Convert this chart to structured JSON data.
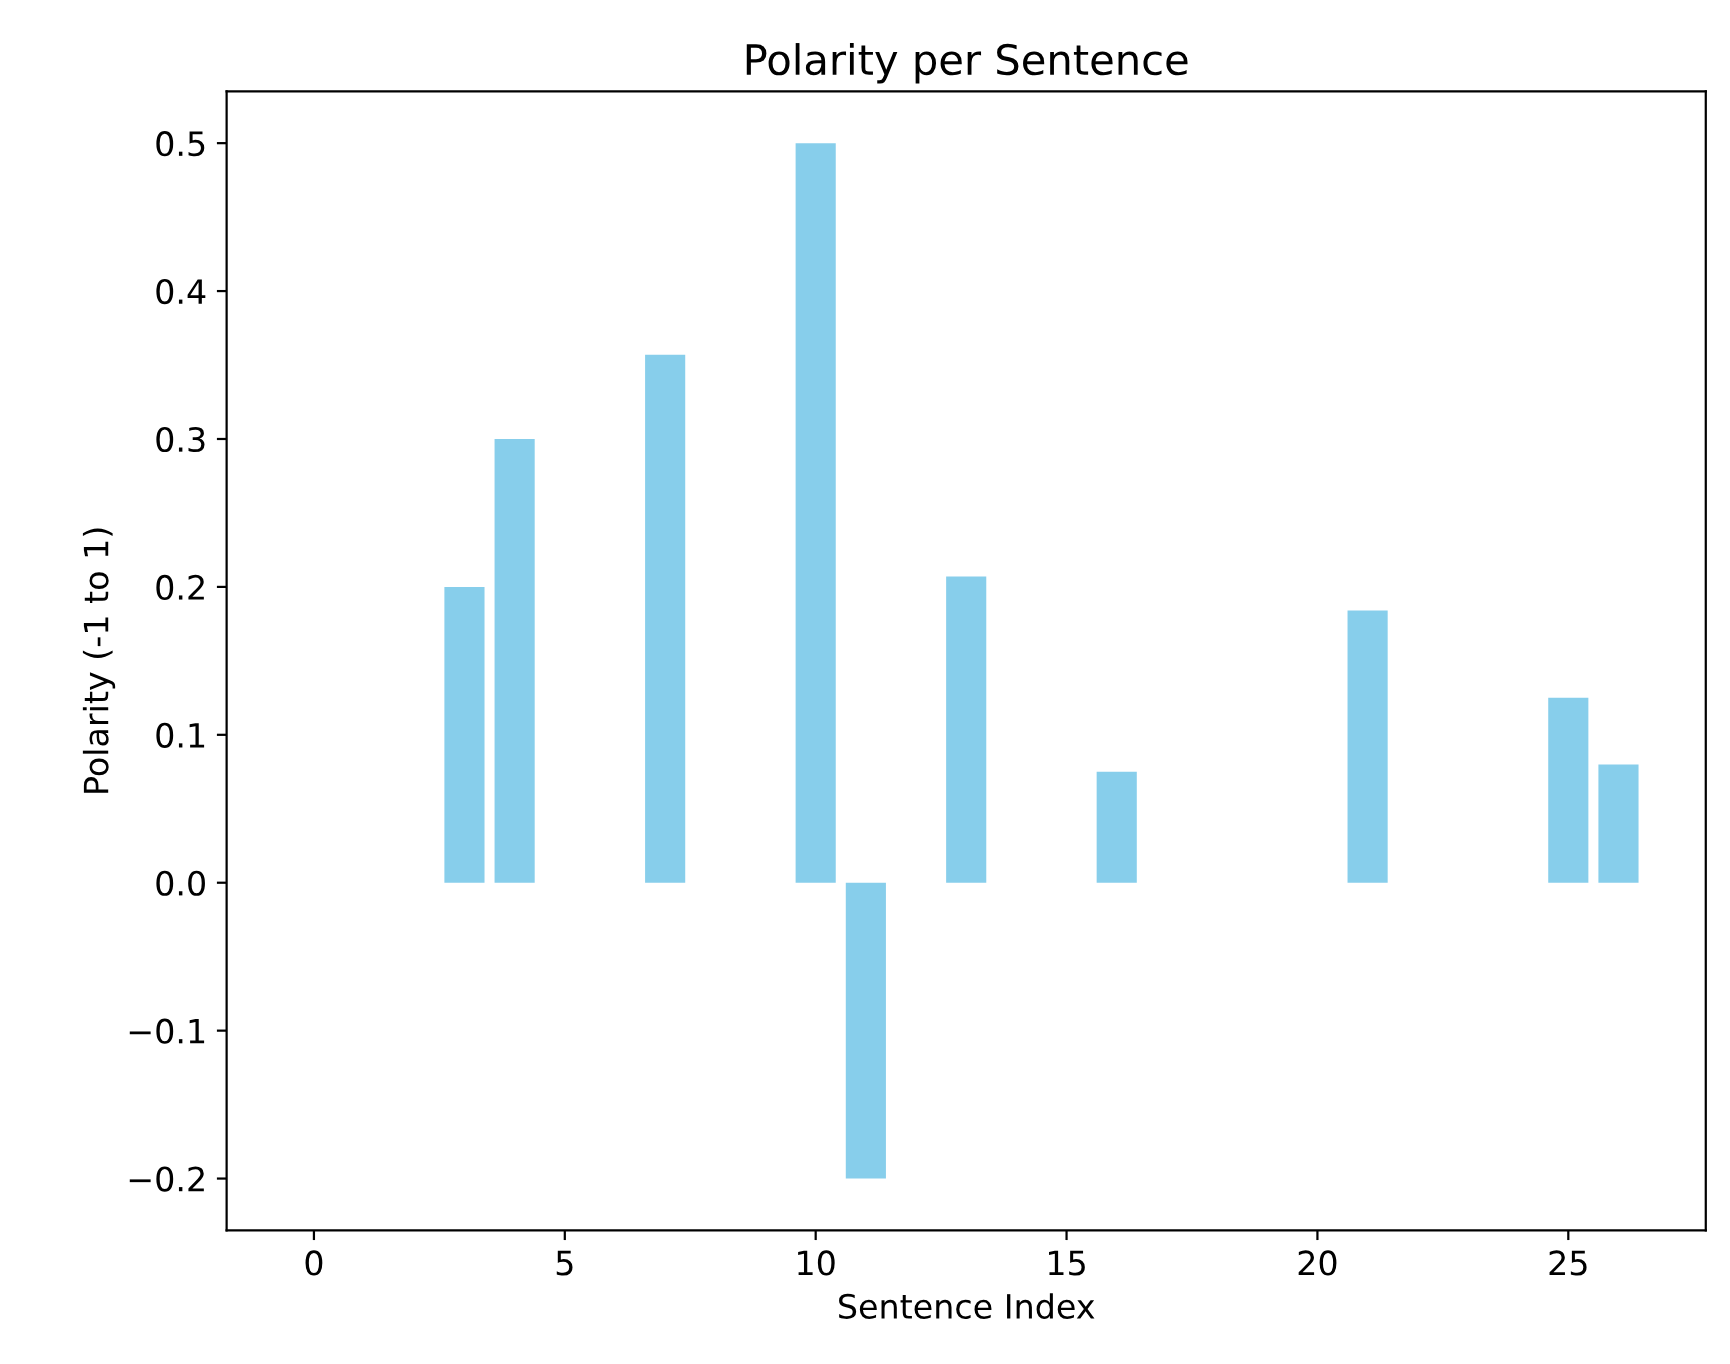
{
  "chart_data": {
    "type": "bar",
    "title": "Polarity per Sentence",
    "xlabel": "Sentence Index",
    "ylabel": "Polarity (-1 to 1)",
    "x": [
      0,
      1,
      2,
      3,
      4,
      5,
      6,
      7,
      8,
      9,
      10,
      11,
      12,
      13,
      14,
      15,
      16,
      17,
      18,
      19,
      20,
      21,
      22,
      23,
      24,
      25,
      26
    ],
    "values": [
      0,
      0,
      0,
      0.2,
      0.3,
      0,
      0,
      0.357,
      0,
      0,
      0.5,
      -0.2,
      0,
      0.207,
      0,
      0,
      0.075,
      0,
      0,
      0,
      0,
      0.184,
      0,
      0,
      0,
      0.125,
      0.08
    ],
    "color": "#87ceeb",
    "xlim": [
      -1.74,
      27.74
    ],
    "xticks": [
      0,
      5,
      10,
      15,
      20,
      25
    ],
    "ylim": [
      -0.235,
      0.535
    ],
    "yticks": [
      -0.2,
      -0.1,
      {
        "value": 0,
        "label": "0.0"
      },
      0.1,
      0.2,
      0.3,
      0.4,
      0.5
    ],
    "grid": false,
    "legend": false
  }
}
